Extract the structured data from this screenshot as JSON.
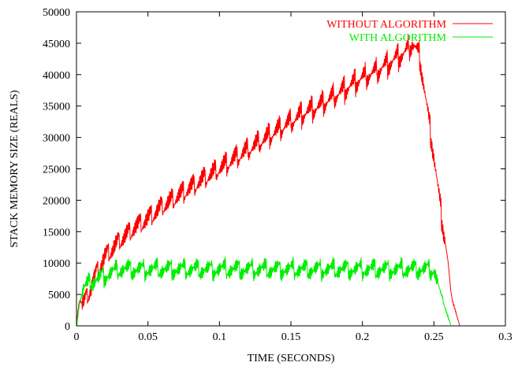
{
  "chart_data": {
    "type": "line",
    "title": "",
    "xlabel": "TIME (SECONDS)",
    "ylabel": "STACK MEMORY SIZE (REALS)",
    "xlim": [
      0,
      0.3
    ],
    "ylim": [
      0,
      50000
    ],
    "xticks": [
      "0",
      "0.05",
      "0.1",
      "0.15",
      "0.2",
      "0.25",
      "0.3"
    ],
    "yticks": [
      "0",
      "5000",
      "10000",
      "15000",
      "20000",
      "25000",
      "30000",
      "35000",
      "40000",
      "45000",
      "50000"
    ],
    "grid": false,
    "legend_position": "top-right",
    "series": [
      {
        "name": "WITHOUT ALGORITHM",
        "color": "#ff0000",
        "x": [
          0,
          0.001,
          0.002,
          0.005,
          0.01,
          0.015,
          0.02,
          0.03,
          0.04,
          0.05,
          0.06,
          0.07,
          0.08,
          0.09,
          0.1,
          0.11,
          0.12,
          0.13,
          0.14,
          0.15,
          0.16,
          0.17,
          0.18,
          0.19,
          0.2,
          0.21,
          0.22,
          0.23,
          0.235,
          0.24,
          0.245,
          0.25,
          0.255,
          0.26,
          0.262,
          0.268
        ],
        "y": [
          0,
          2500,
          4000,
          3500,
          6000,
          9000,
          11000,
          13500,
          15500,
          17000,
          19000,
          20500,
          22000,
          23500,
          25000,
          26500,
          28000,
          29500,
          31000,
          32500,
          34000,
          35000,
          36500,
          38000,
          39500,
          40500,
          42000,
          43500,
          45000,
          43000,
          35000,
          27000,
          18000,
          10000,
          5000,
          0
        ]
      },
      {
        "name": "WITH ALGORITHM",
        "color": "#00ee00",
        "x": [
          0,
          0.002,
          0.005,
          0.01,
          0.015,
          0.02,
          0.025,
          0.03,
          0.04,
          0.05,
          0.06,
          0.07,
          0.08,
          0.09,
          0.1,
          0.11,
          0.12,
          0.13,
          0.14,
          0.15,
          0.16,
          0.17,
          0.18,
          0.19,
          0.2,
          0.21,
          0.22,
          0.23,
          0.24,
          0.25,
          0.255,
          0.262
        ],
        "y": [
          0,
          3500,
          6000,
          7000,
          7500,
          8000,
          8500,
          9000,
          9000,
          9000,
          9000,
          9000,
          9000,
          9000,
          9000,
          9000,
          9000,
          9000,
          9000,
          9000,
          9000,
          9000,
          9000,
          9000,
          9000,
          9000,
          9000,
          9000,
          9000,
          9000,
          5000,
          0
        ]
      }
    ]
  }
}
